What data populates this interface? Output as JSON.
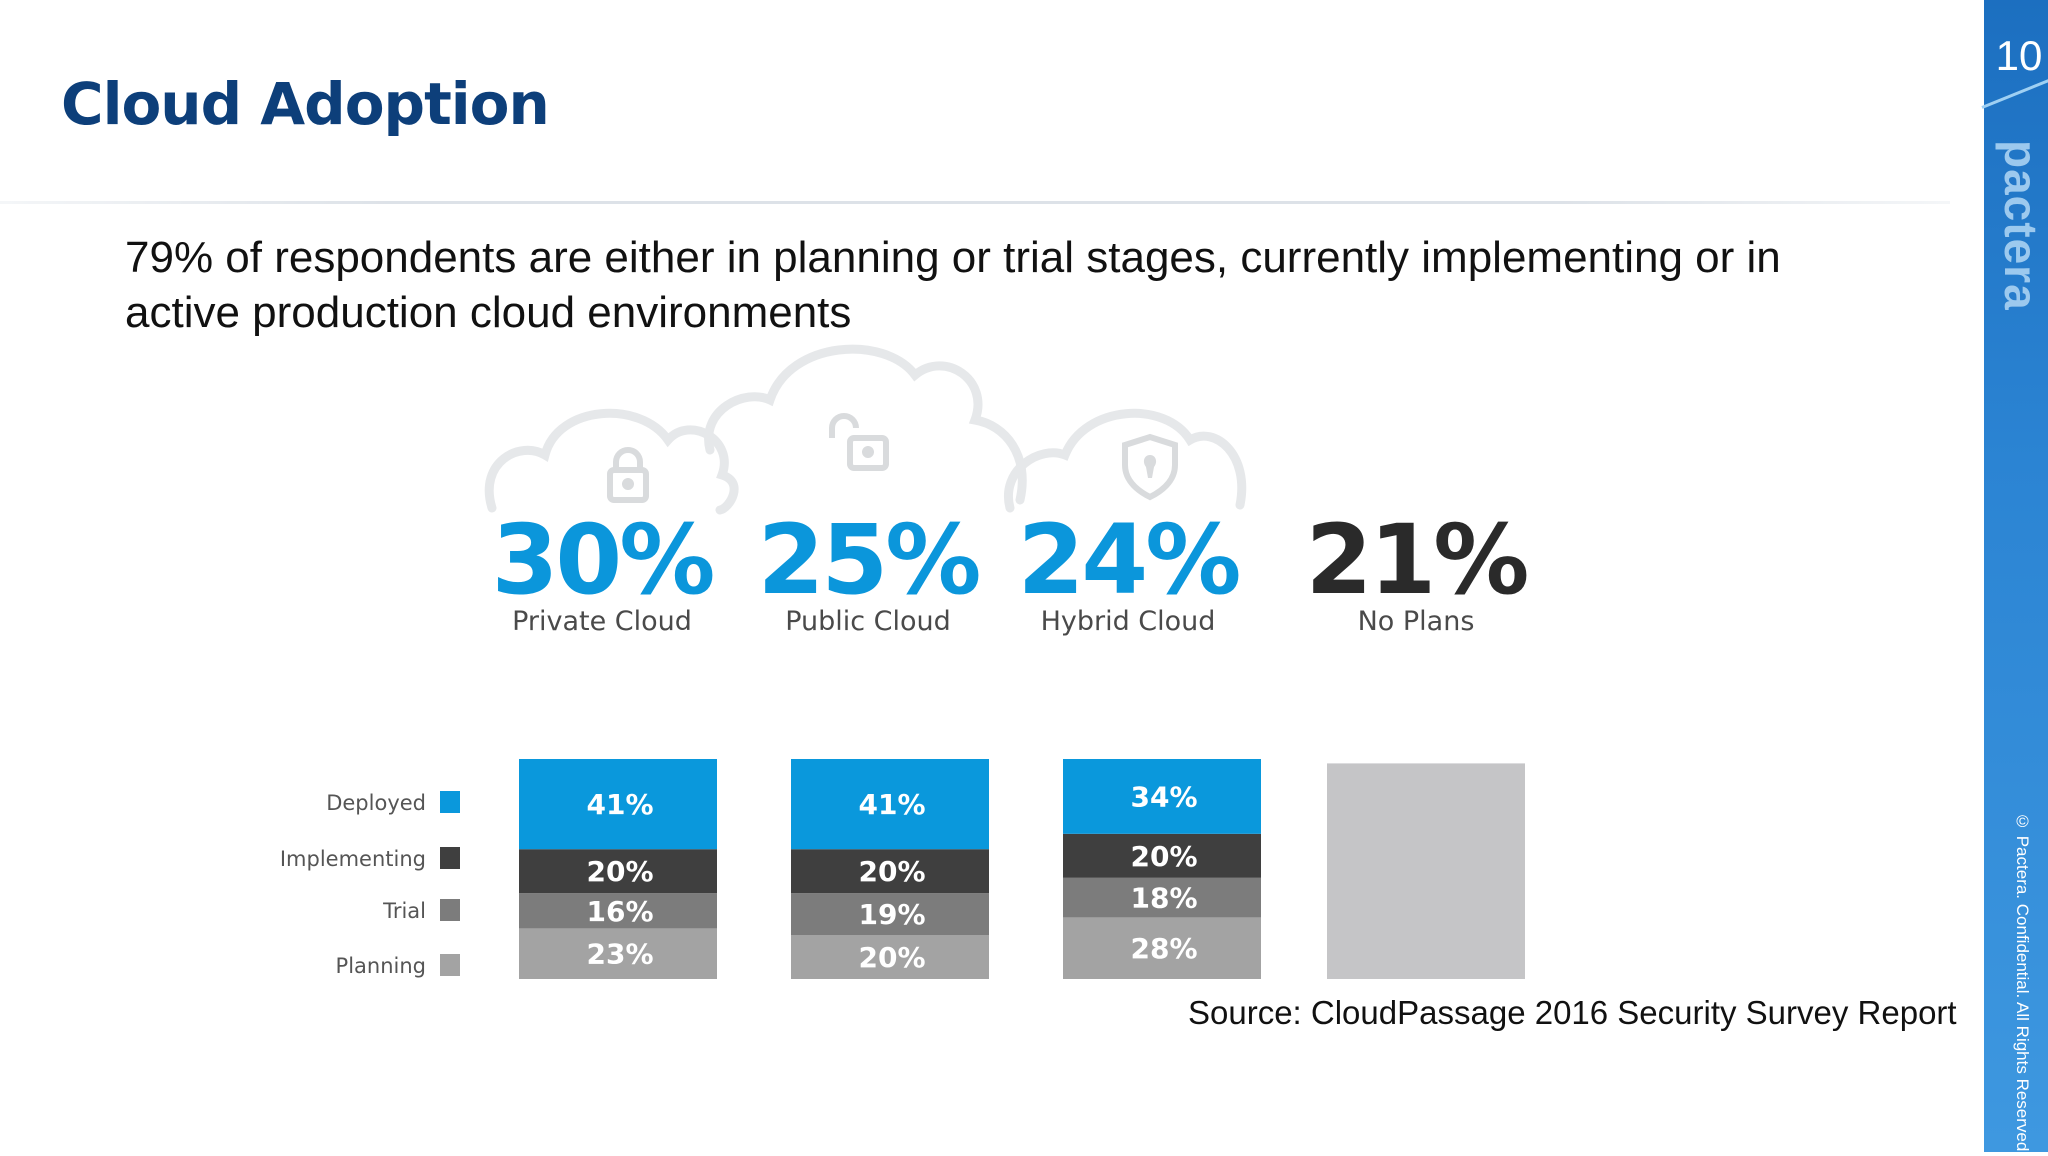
{
  "slide": {
    "title": "Cloud Adoption",
    "subtitle": "79% of respondents are either in planning or trial stages, currently implementing or in active production cloud environments",
    "page_number": "10",
    "logo_text": "pactera",
    "copyright": "© Pactera. Confidential. All Rights Reserved.",
    "source": "Source: CloudPassage 2016 Security Survey Report"
  },
  "colors": {
    "title": "#0d3f7a",
    "accent_blue": "#0b96db",
    "no_plans_figure": "#2a2a2a",
    "side_strip": "#2b84d3"
  },
  "icons": [
    "lock-icon",
    "unlock-icon",
    "shield-icon"
  ],
  "chart_data": {
    "type": "bar",
    "stacked": true,
    "headline_categories": [
      {
        "percent": "30%",
        "label": "Private Cloud",
        "color": "#0b96db",
        "icon": "lock-icon"
      },
      {
        "percent": "25%",
        "label": "Public Cloud",
        "color": "#0b96db",
        "icon": "unlock-icon"
      },
      {
        "percent": "24%",
        "label": "Hybrid Cloud",
        "color": "#0b96db",
        "icon": "shield-icon"
      },
      {
        "percent": "21%",
        "label": "No Plans",
        "color": "#2a2a2a",
        "icon": null
      }
    ],
    "categories": [
      "Private Cloud",
      "Public Cloud",
      "Hybrid Cloud",
      "No Plans"
    ],
    "series": [
      {
        "name": "Deployed",
        "color": "#0a98dc",
        "values": [
          41,
          41,
          34,
          null
        ],
        "labels": [
          "41%",
          "41%",
          "34%",
          ""
        ]
      },
      {
        "name": "Implementing",
        "color": "#3f3f3f",
        "values": [
          20,
          20,
          20,
          null
        ],
        "labels": [
          "20%",
          "20%",
          "20%",
          ""
        ]
      },
      {
        "name": "Trial",
        "color": "#7c7c7c",
        "values": [
          16,
          19,
          18,
          null
        ],
        "labels": [
          "16%",
          "19%",
          "18%",
          ""
        ]
      },
      {
        "name": "Planning",
        "color": "#a3a3a3",
        "values": [
          23,
          20,
          28,
          null
        ],
        "labels": [
          "23%",
          "20%",
          "28%",
          ""
        ]
      }
    ],
    "no_plans_bar_color": "#c5c5c7",
    "legend_position": "left"
  }
}
